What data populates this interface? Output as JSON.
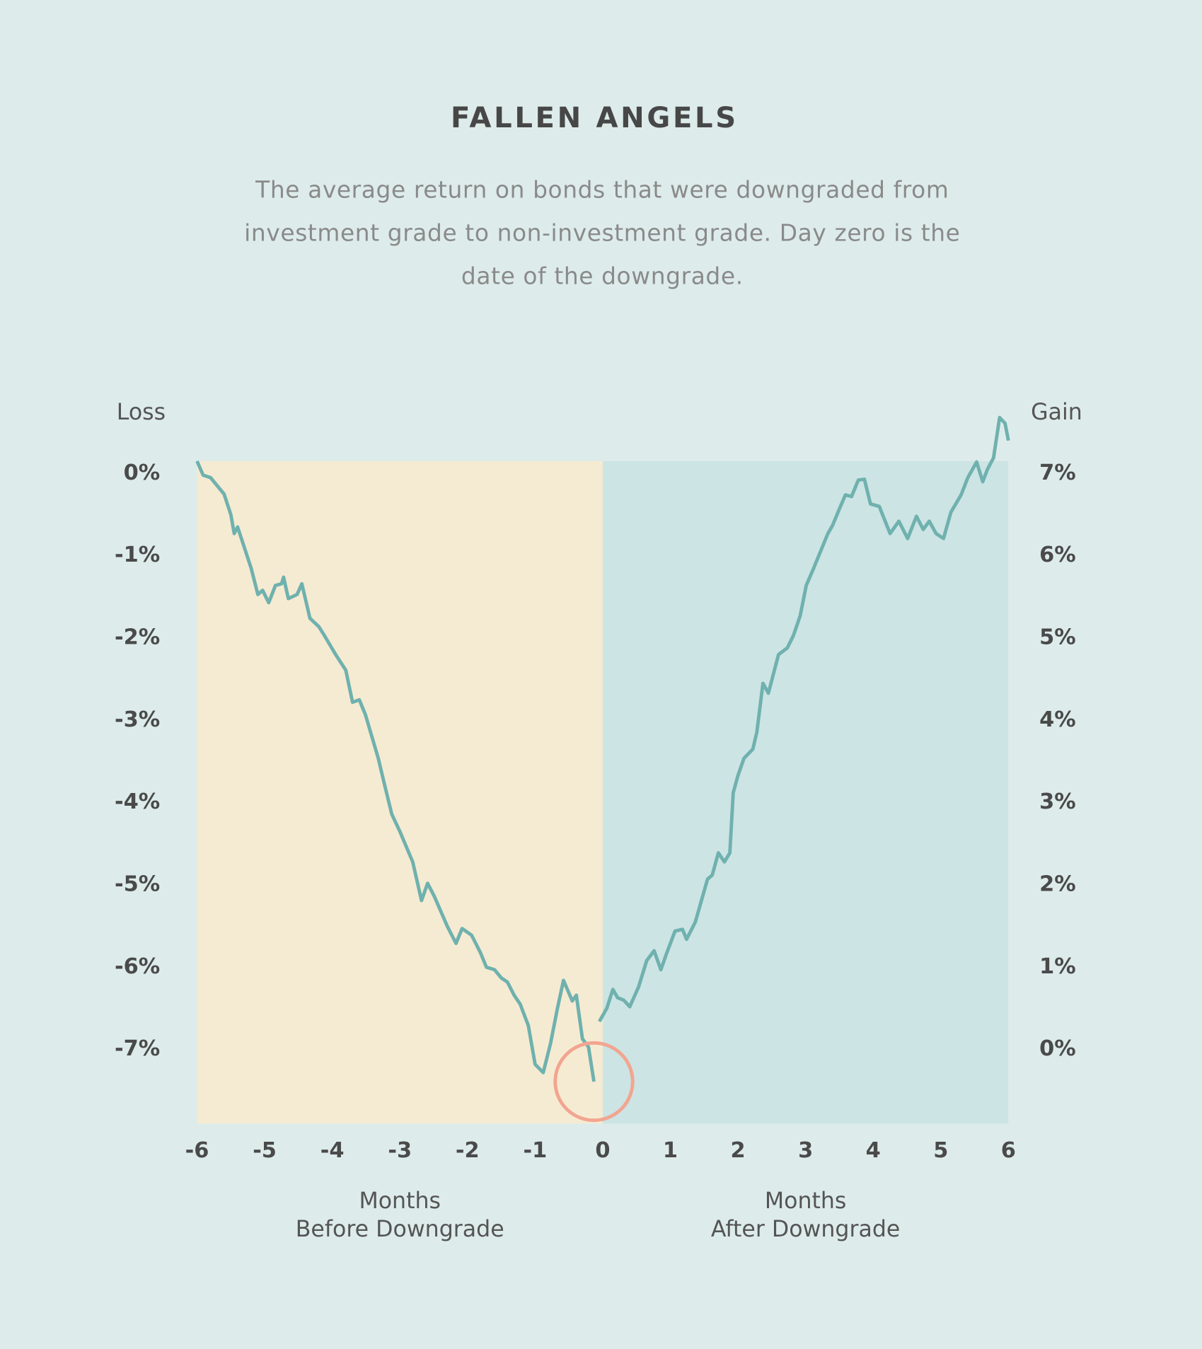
{
  "chart_data": {
    "type": "line",
    "title": "FALLEN ANGELS",
    "subtitle": "The average return on bonds that were downgraded from investment grade to non-investment grade. Day zero is the date of the downgrade.",
    "y_label": "Loss",
    "y2_label": "Gain",
    "x_label_before": [
      "Months",
      "Before Downgrade"
    ],
    "x_label_after": [
      "Months",
      "After Downgrade"
    ],
    "xlim": [
      -6,
      6
    ],
    "xticks": [
      -6,
      -5,
      -4,
      -3,
      -2,
      -1,
      0,
      1,
      2,
      3,
      4,
      5,
      6
    ],
    "ylim": [
      -7.9,
      0.15
    ],
    "yticks": [
      {
        "value": 0,
        "label": "0%"
      },
      {
        "value": -1,
        "label": "-1%"
      },
      {
        "value": -2,
        "label": "-2%"
      },
      {
        "value": -3,
        "label": "-3%"
      },
      {
        "value": -4,
        "label": "-4%"
      },
      {
        "value": -5,
        "label": "-5%"
      },
      {
        "value": -6,
        "label": "-6%"
      },
      {
        "value": -7,
        "label": "-7%"
      }
    ],
    "y2lim": [
      -0.9,
      7.15
    ],
    "y2ticks": [
      {
        "value": 7,
        "label": "7%"
      },
      {
        "value": 6,
        "label": "6%"
      },
      {
        "value": 5,
        "label": "5%"
      },
      {
        "value": 4,
        "label": "4%"
      },
      {
        "value": 3,
        "label": "3%"
      },
      {
        "value": 2,
        "label": "2%"
      },
      {
        "value": 1,
        "label": "1%"
      },
      {
        "value": 0,
        "label": "0%"
      }
    ],
    "shading": [
      {
        "from": -6,
        "to": 0,
        "color": "#f5ebd2"
      },
      {
        "from": 0,
        "to": 6,
        "color": "#cce4e4"
      }
    ],
    "highlight_color": "#f2a590",
    "series": [
      {
        "color": "#6fb1ae",
        "x": [
          -6.0,
          -5.91,
          -5.8,
          -5.7,
          -5.6,
          -5.5,
          -5.45,
          -5.4,
          -5.3,
          -5.2,
          -5.1,
          -5.03,
          -4.94,
          -4.84,
          -4.75,
          -4.72,
          -4.65,
          -4.52,
          -4.45,
          -4.33,
          -4.2,
          -4.13,
          -3.95,
          -3.8,
          -3.7,
          -3.6,
          -3.51,
          -3.32,
          -3.23,
          -3.12,
          -3.0,
          -2.81,
          -2.68,
          -2.59,
          -2.49,
          -2.3,
          -2.17,
          -2.08,
          -1.94,
          -1.81,
          -1.72,
          -1.6,
          -1.5,
          -1.41,
          -1.31,
          -1.22,
          -1.1,
          -1.0,
          -0.88,
          -0.77,
          -0.67,
          -0.58,
          -0.45,
          -0.39,
          -0.3,
          -0.21,
          -0.13
        ],
        "values": [
          0.15,
          -0.02,
          -0.05,
          -0.15,
          -0.25,
          -0.5,
          -0.73,
          -0.65,
          -0.9,
          -1.15,
          -1.47,
          -1.42,
          -1.57,
          -1.36,
          -1.34,
          -1.26,
          -1.52,
          -1.47,
          -1.34,
          -1.76,
          -1.86,
          -1.95,
          -2.2,
          -2.39,
          -2.78,
          -2.75,
          -2.93,
          -3.46,
          -3.77,
          -4.14,
          -4.35,
          -4.72,
          -5.19,
          -4.98,
          -5.14,
          -5.5,
          -5.71,
          -5.53,
          -5.61,
          -5.82,
          -6.0,
          -6.03,
          -6.13,
          -6.18,
          -6.34,
          -6.45,
          -6.71,
          -7.18,
          -7.28,
          -6.92,
          -6.5,
          -6.16,
          -6.41,
          -6.34,
          -6.87,
          -6.97,
          -7.39
        ]
      },
      {
        "color": "#6fb1ae",
        "axis": "y2",
        "x": [
          -0.05,
          0.06,
          0.15,
          0.22,
          0.31,
          0.4,
          0.53,
          0.65,
          0.76,
          0.86,
          0.95,
          1.07,
          1.18,
          1.24,
          1.37,
          1.46,
          1.55,
          1.62,
          1.71,
          1.8,
          1.88,
          1.93,
          2.0,
          2.09,
          2.22,
          2.28,
          2.37,
          2.45,
          2.6,
          2.73,
          2.82,
          2.92,
          3.01,
          3.11,
          3.24,
          3.33,
          3.4,
          3.49,
          3.59,
          3.68,
          3.78,
          3.87,
          3.96,
          4.09,
          4.25,
          4.38,
          4.51,
          4.64,
          4.74,
          4.83,
          4.93,
          5.04,
          5.15,
          5.3,
          5.4,
          5.53,
          5.62,
          5.69,
          5.78,
          5.87,
          5.95,
          6.0
        ],
        "values": [
          0.34,
          0.5,
          0.73,
          0.63,
          0.6,
          0.52,
          0.76,
          1.08,
          1.2,
          0.97,
          1.18,
          1.44,
          1.46,
          1.34,
          1.55,
          1.81,
          2.07,
          2.12,
          2.39,
          2.28,
          2.39,
          3.12,
          3.33,
          3.54,
          3.65,
          3.86,
          4.45,
          4.33,
          4.8,
          4.88,
          5.03,
          5.27,
          5.64,
          5.83,
          6.09,
          6.27,
          6.37,
          6.55,
          6.74,
          6.72,
          6.92,
          6.93,
          6.63,
          6.6,
          6.27,
          6.42,
          6.21,
          6.48,
          6.32,
          6.42,
          6.27,
          6.21,
          6.53,
          6.74,
          6.95,
          7.14,
          6.9,
          7.05,
          7.19,
          7.68,
          7.61,
          7.4
        ]
      }
    ]
  }
}
